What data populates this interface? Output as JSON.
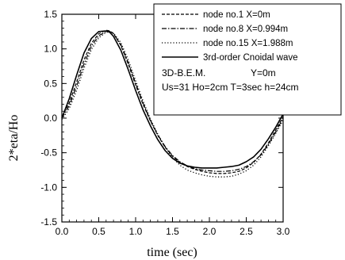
{
  "chart_data": {
    "type": "line",
    "xlabel": "time (sec)",
    "ylabel": "2*eta/Ho",
    "xlim": [
      0.0,
      3.0
    ],
    "ylim": [
      -1.5,
      1.5
    ],
    "x_ticks": [
      "0.0",
      "0.5",
      "1.0",
      "1.5",
      "2.0",
      "2.5",
      "3.0"
    ],
    "y_ticks": [
      "1.5",
      "1.0",
      "0.5",
      "0.0",
      "-0.5",
      "-1.0",
      "-1.5"
    ],
    "grid": false,
    "legend_position": "top-right",
    "series": [
      {
        "name": "node no.1  X=0m",
        "style": "dashed",
        "x": [
          0.0,
          0.1,
          0.2,
          0.3,
          0.4,
          0.5,
          0.6,
          0.65,
          0.7,
          0.8,
          0.9,
          1.0,
          1.1,
          1.2,
          1.3,
          1.4,
          1.5,
          1.6,
          1.7,
          1.8,
          1.9,
          2.0,
          2.1,
          2.2,
          2.3,
          2.4,
          2.5,
          2.6,
          2.7,
          2.8,
          2.9,
          3.0
        ],
        "y": [
          0.02,
          0.22,
          0.52,
          0.84,
          1.08,
          1.22,
          1.27,
          1.26,
          1.22,
          1.05,
          0.78,
          0.48,
          0.2,
          -0.04,
          -0.25,
          -0.42,
          -0.55,
          -0.64,
          -0.7,
          -0.74,
          -0.77,
          -0.79,
          -0.8,
          -0.8,
          -0.79,
          -0.77,
          -0.72,
          -0.64,
          -0.52,
          -0.36,
          -0.17,
          0.02
        ]
      },
      {
        "name": "node no.8  X=0.994m",
        "style": "dashdot",
        "x": [
          0.0,
          0.1,
          0.2,
          0.3,
          0.4,
          0.5,
          0.6,
          0.65,
          0.7,
          0.8,
          0.9,
          1.0,
          1.1,
          1.2,
          1.3,
          1.4,
          1.5,
          1.6,
          1.7,
          1.8,
          1.9,
          2.0,
          2.1,
          2.2,
          2.3,
          2.4,
          2.5,
          2.6,
          2.7,
          2.8,
          2.9,
          3.0
        ],
        "y": [
          0.0,
          0.18,
          0.46,
          0.78,
          1.04,
          1.19,
          1.25,
          1.25,
          1.22,
          1.06,
          0.8,
          0.5,
          0.22,
          -0.03,
          -0.24,
          -0.41,
          -0.54,
          -0.63,
          -0.69,
          -0.73,
          -0.75,
          -0.76,
          -0.77,
          -0.77,
          -0.76,
          -0.74,
          -0.7,
          -0.63,
          -0.53,
          -0.38,
          -0.2,
          0.0
        ]
      },
      {
        "name": "node no.15 X=1.988m",
        "style": "dotted",
        "x": [
          0.0,
          0.1,
          0.2,
          0.3,
          0.4,
          0.5,
          0.6,
          0.65,
          0.7,
          0.8,
          0.9,
          1.0,
          1.1,
          1.2,
          1.3,
          1.4,
          1.5,
          1.6,
          1.7,
          1.8,
          1.9,
          2.0,
          2.1,
          2.2,
          2.3,
          2.4,
          2.5,
          2.6,
          2.7,
          2.8,
          2.9,
          3.0
        ],
        "y": [
          -0.02,
          0.14,
          0.4,
          0.72,
          0.99,
          1.16,
          1.24,
          1.25,
          1.23,
          1.09,
          0.84,
          0.54,
          0.25,
          -0.01,
          -0.23,
          -0.42,
          -0.57,
          -0.68,
          -0.75,
          -0.79,
          -0.82,
          -0.84,
          -0.85,
          -0.85,
          -0.84,
          -0.81,
          -0.76,
          -0.68,
          -0.56,
          -0.4,
          -0.22,
          -0.03
        ]
      },
      {
        "name": "3rd-order Cnoidal wave",
        "style": "solid",
        "x": [
          0.0,
          0.1,
          0.2,
          0.3,
          0.4,
          0.5,
          0.6,
          0.65,
          0.7,
          0.8,
          0.9,
          1.0,
          1.1,
          1.2,
          1.3,
          1.4,
          1.5,
          1.6,
          1.7,
          1.8,
          1.9,
          2.0,
          2.1,
          2.2,
          2.3,
          2.4,
          2.5,
          2.6,
          2.7,
          2.8,
          2.9,
          3.0
        ],
        "y": [
          0.0,
          0.28,
          0.62,
          0.94,
          1.15,
          1.25,
          1.26,
          1.24,
          1.18,
          0.98,
          0.7,
          0.4,
          0.12,
          -0.11,
          -0.31,
          -0.47,
          -0.58,
          -0.65,
          -0.69,
          -0.71,
          -0.72,
          -0.72,
          -0.72,
          -0.71,
          -0.7,
          -0.68,
          -0.63,
          -0.56,
          -0.45,
          -0.3,
          -0.13,
          0.06
        ]
      }
    ],
    "annotation": {
      "line1_left": "3D-B.E.M.",
      "line1_right": "Y=0m",
      "line2": "Us=31 Ho=2cm T=3sec h=24cm"
    }
  }
}
